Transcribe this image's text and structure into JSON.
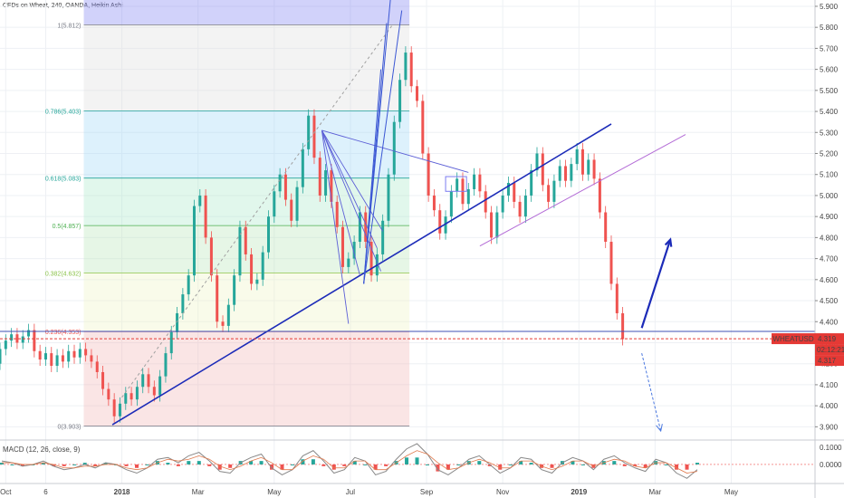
{
  "header": {
    "title": "CFDs on Wheat, 240, OANDA, Heikin Ashi"
  },
  "chart_data": {
    "type": "candlestick",
    "title": "CFDs on Wheat, 240, OANDA, Heikin Ashi",
    "symbol": "WHEATUSD",
    "price_axis": {
      "ylim": [
        3.88,
        5.93
      ],
      "ticks": [
        "3.900",
        "4.000",
        "4.100",
        "4.200",
        "4.300",
        "4.400",
        "4.500",
        "4.600",
        "4.700",
        "4.800",
        "4.900",
        "5.000",
        "5.100",
        "5.200",
        "5.300",
        "5.400",
        "5.500",
        "5.600",
        "5.700",
        "5.800",
        "5.900"
      ]
    },
    "time_axis": {
      "labels": [
        {
          "label": "Oct",
          "t": 0.15
        },
        {
          "label": "6",
          "t": 1.2
        },
        {
          "label": "2018",
          "t": 3.2
        },
        {
          "label": "Mar",
          "t": 5.2
        },
        {
          "label": "May",
          "t": 7.2
        },
        {
          "label": "Jul",
          "t": 9.2
        },
        {
          "label": "Sep",
          "t": 11.2
        },
        {
          "label": "Nov",
          "t": 13.2
        },
        {
          "label": "2019",
          "t": 15.2
        },
        {
          "label": "Mar",
          "t": 17.2
        },
        {
          "label": "May",
          "t": 19.2
        }
      ],
      "range": [
        0,
        21.4
      ]
    },
    "current_price": {
      "label": "WHEATUSD",
      "value": "4.319",
      "price": 4.319
    },
    "countdown": {
      "value": "02:12:21"
    },
    "last_close": {
      "value": "4.317",
      "price": 4.317
    },
    "fibonacci": {
      "t_range": [
        2.2,
        10.75
      ],
      "levels": [
        {
          "label": "1(5.812)",
          "price": 5.812,
          "color": "#787b86",
          "fill": "#7b7df0"
        },
        {
          "label": "0.786(5.403)",
          "price": 5.403,
          "color": "#26a69a",
          "fill": "#dcdcdc"
        },
        {
          "label": "0.618(5.083)",
          "price": 5.083,
          "color": "#26a69a",
          "fill": "#9fd8f5"
        },
        {
          "label": "0.5(4.857)",
          "price": 4.857,
          "color": "#4caf50",
          "fill": "#a8e8c8"
        },
        {
          "label": "0.382(4.632)",
          "price": 4.632,
          "color": "#8bc34a",
          "fill": "#b8e6b8"
        },
        {
          "label": "0.236(4.353)",
          "price": 4.353,
          "color": "#ef5350",
          "fill": "#eef3c4"
        },
        {
          "label": "0(3.903)",
          "price": 3.903,
          "color": "#787b86",
          "fill": "#f0b4b4"
        }
      ]
    },
    "candles": [
      {
        "t": 0.0,
        "o": 4.2,
        "c": 4.27
      },
      {
        "t": 0.15,
        "o": 4.27,
        "c": 4.31
      },
      {
        "t": 0.3,
        "o": 4.31,
        "c": 4.34
      },
      {
        "t": 0.45,
        "o": 4.34,
        "c": 4.3
      },
      {
        "t": 0.6,
        "o": 4.3,
        "c": 4.33
      },
      {
        "t": 0.75,
        "o": 4.33,
        "c": 4.36
      },
      {
        "t": 0.9,
        "o": 4.36,
        "c": 4.26
      },
      {
        "t": 1.05,
        "o": 4.26,
        "c": 4.22
      },
      {
        "t": 1.2,
        "o": 4.22,
        "c": 4.25
      },
      {
        "t": 1.35,
        "o": 4.25,
        "c": 4.19
      },
      {
        "t": 1.5,
        "o": 4.19,
        "c": 4.24
      },
      {
        "t": 1.65,
        "o": 4.24,
        "c": 4.21
      },
      {
        "t": 1.8,
        "o": 4.21,
        "c": 4.26
      },
      {
        "t": 1.95,
        "o": 4.26,
        "c": 4.23
      },
      {
        "t": 2.1,
        "o": 4.23,
        "c": 4.27
      },
      {
        "t": 2.25,
        "o": 4.27,
        "c": 4.24
      },
      {
        "t": 2.4,
        "o": 4.24,
        "c": 4.21
      },
      {
        "t": 2.55,
        "o": 4.21,
        "c": 4.16
      },
      {
        "t": 2.7,
        "o": 4.16,
        "c": 4.08
      },
      {
        "t": 2.85,
        "o": 4.08,
        "c": 4.03
      },
      {
        "t": 3.0,
        "o": 4.03,
        "c": 3.95
      },
      {
        "t": 3.15,
        "o": 3.95,
        "c": 4.01
      },
      {
        "t": 3.3,
        "o": 4.01,
        "c": 4.06
      },
      {
        "t": 3.45,
        "o": 4.06,
        "c": 4.03
      },
      {
        "t": 3.6,
        "o": 4.03,
        "c": 4.09
      },
      {
        "t": 3.75,
        "o": 4.09,
        "c": 4.15
      },
      {
        "t": 3.9,
        "o": 4.15,
        "c": 4.09
      },
      {
        "t": 4.05,
        "o": 4.09,
        "c": 4.05
      },
      {
        "t": 4.2,
        "o": 4.05,
        "c": 4.14
      },
      {
        "t": 4.35,
        "o": 4.14,
        "c": 4.25
      },
      {
        "t": 4.5,
        "o": 4.25,
        "c": 4.35
      },
      {
        "t": 4.65,
        "o": 4.35,
        "c": 4.44
      },
      {
        "t": 4.8,
        "o": 4.44,
        "c": 4.53
      },
      {
        "t": 4.95,
        "o": 4.53,
        "c": 4.62
      },
      {
        "t": 5.1,
        "o": 4.62,
        "c": 4.95
      },
      {
        "t": 5.25,
        "o": 4.95,
        "c": 5.0
      },
      {
        "t": 5.4,
        "o": 5.0,
        "c": 4.8
      },
      {
        "t": 5.55,
        "o": 4.8,
        "c": 4.62
      },
      {
        "t": 5.7,
        "o": 4.62,
        "c": 4.4
      },
      {
        "t": 5.85,
        "o": 4.4,
        "c": 4.38
      },
      {
        "t": 6.0,
        "o": 4.38,
        "c": 4.48
      },
      {
        "t": 6.15,
        "o": 4.48,
        "c": 4.62
      },
      {
        "t": 6.3,
        "o": 4.62,
        "c": 4.85
      },
      {
        "t": 6.45,
        "o": 4.85,
        "c": 4.72
      },
      {
        "t": 6.6,
        "o": 4.72,
        "c": 4.58
      },
      {
        "t": 6.75,
        "o": 4.58,
        "c": 4.6
      },
      {
        "t": 6.9,
        "o": 4.6,
        "c": 4.73
      },
      {
        "t": 7.05,
        "o": 4.73,
        "c": 4.9
      },
      {
        "t": 7.2,
        "o": 4.9,
        "c": 5.02
      },
      {
        "t": 7.35,
        "o": 5.02,
        "c": 5.1
      },
      {
        "t": 7.5,
        "o": 5.1,
        "c": 4.98
      },
      {
        "t": 7.65,
        "o": 4.98,
        "c": 4.88
      },
      {
        "t": 7.8,
        "o": 4.88,
        "c": 5.04
      },
      {
        "t": 7.95,
        "o": 5.04,
        "c": 5.22
      },
      {
        "t": 8.1,
        "o": 5.22,
        "c": 5.38
      },
      {
        "t": 8.25,
        "o": 5.38,
        "c": 5.18
      },
      {
        "t": 8.4,
        "o": 5.18,
        "c": 5.0
      },
      {
        "t": 8.55,
        "o": 5.0,
        "c": 5.12
      },
      {
        "t": 8.7,
        "o": 5.12,
        "c": 4.97
      },
      {
        "t": 8.85,
        "o": 4.97,
        "c": 4.85
      },
      {
        "t": 9.0,
        "o": 4.85,
        "c": 4.66
      },
      {
        "t": 9.15,
        "o": 4.66,
        "c": 4.7
      },
      {
        "t": 9.3,
        "o": 4.7,
        "c": 4.78
      },
      {
        "t": 9.45,
        "o": 4.78,
        "c": 4.92
      },
      {
        "t": 9.6,
        "o": 4.92,
        "c": 4.78
      },
      {
        "t": 9.75,
        "o": 4.78,
        "c": 4.62
      },
      {
        "t": 9.9,
        "o": 4.62,
        "c": 4.72
      },
      {
        "t": 10.05,
        "o": 4.72,
        "c": 4.88
      },
      {
        "t": 10.2,
        "o": 4.88,
        "c": 5.1
      },
      {
        "t": 10.35,
        "o": 5.1,
        "c": 5.35
      },
      {
        "t": 10.5,
        "o": 5.35,
        "c": 5.55
      },
      {
        "t": 10.65,
        "o": 5.55,
        "c": 5.68
      },
      {
        "t": 10.8,
        "o": 5.68,
        "c": 5.52
      },
      {
        "t": 10.95,
        "o": 5.52,
        "c": 5.45
      },
      {
        "t": 11.1,
        "o": 5.45,
        "c": 5.2
      },
      {
        "t": 11.25,
        "o": 5.2,
        "c": 5.0
      },
      {
        "t": 11.4,
        "o": 5.0,
        "c": 4.93
      },
      {
        "t": 11.55,
        "o": 4.93,
        "c": 4.82
      },
      {
        "t": 11.7,
        "o": 4.82,
        "c": 4.9
      },
      {
        "t": 11.85,
        "o": 4.9,
        "c": 5.02
      },
      {
        "t": 12.0,
        "o": 5.02,
        "c": 5.08
      },
      {
        "t": 12.15,
        "o": 5.08,
        "c": 4.96
      },
      {
        "t": 12.3,
        "o": 4.96,
        "c": 5.03
      },
      {
        "t": 12.45,
        "o": 5.03,
        "c": 5.1
      },
      {
        "t": 12.6,
        "o": 5.1,
        "c": 5.02
      },
      {
        "t": 12.75,
        "o": 5.02,
        "c": 4.92
      },
      {
        "t": 12.9,
        "o": 4.92,
        "c": 4.8
      },
      {
        "t": 13.05,
        "o": 4.8,
        "c": 4.92
      },
      {
        "t": 13.2,
        "o": 4.92,
        "c": 5.0
      },
      {
        "t": 13.35,
        "o": 5.0,
        "c": 5.06
      },
      {
        "t": 13.5,
        "o": 5.06,
        "c": 4.97
      },
      {
        "t": 13.65,
        "o": 4.97,
        "c": 4.9
      },
      {
        "t": 13.8,
        "o": 4.9,
        "c": 5.0
      },
      {
        "t": 13.95,
        "o": 5.0,
        "c": 5.12
      },
      {
        "t": 14.1,
        "o": 5.12,
        "c": 5.2
      },
      {
        "t": 14.25,
        "o": 5.2,
        "c": 5.05
      },
      {
        "t": 14.4,
        "o": 5.05,
        "c": 4.97
      },
      {
        "t": 14.55,
        "o": 4.97,
        "c": 5.07
      },
      {
        "t": 14.7,
        "o": 5.07,
        "c": 5.14
      },
      {
        "t": 14.85,
        "o": 5.14,
        "c": 5.07
      },
      {
        "t": 15.0,
        "o": 5.07,
        "c": 5.15
      },
      {
        "t": 15.15,
        "o": 5.15,
        "c": 5.22
      },
      {
        "t": 15.3,
        "o": 5.22,
        "c": 5.1
      },
      {
        "t": 15.45,
        "o": 5.1,
        "c": 5.17
      },
      {
        "t": 15.6,
        "o": 5.17,
        "c": 5.08
      },
      {
        "t": 15.75,
        "o": 5.08,
        "c": 4.92
      },
      {
        "t": 15.9,
        "o": 4.92,
        "c": 4.78
      },
      {
        "t": 16.05,
        "o": 4.78,
        "c": 4.58
      },
      {
        "t": 16.2,
        "o": 4.58,
        "c": 4.44
      },
      {
        "t": 16.35,
        "o": 4.44,
        "c": 4.317
      }
    ],
    "drawings": {
      "uptrend_line": {
        "from": {
          "t": 2.95,
          "p": 3.91
        },
        "to": {
          "t": 16.05,
          "p": 5.34
        },
        "color": "#1c2bb8"
      },
      "dashed_diagonal": {
        "from": {
          "t": 3.2,
          "p": 4.04
        },
        "to": {
          "t": 10.3,
          "p": 5.81
        },
        "color": "#a0a0a0"
      },
      "channel_line": {
        "from": {
          "t": 12.6,
          "p": 4.76
        },
        "to": {
          "t": 18.0,
          "p": 5.29
        },
        "color": "#b36bd6"
      },
      "horizontal_line": {
        "price": 4.354,
        "color": "#3f51b5"
      },
      "price_line": {
        "price": 4.319,
        "color": "#e53935"
      },
      "projection_up": {
        "from": {
          "t": 16.85,
          "p": 4.37
        },
        "to": {
          "t": 17.6,
          "p": 4.79
        },
        "color": "#1c2bb8"
      },
      "projection_down": {
        "from": {
          "t": 16.85,
          "p": 4.25
        },
        "to": {
          "t": 17.35,
          "p": 3.88
        },
        "color": "#4a78e0"
      },
      "pitchfan_origin": {
        "t": 8.45,
        "p": 5.31
      },
      "pitchfan_rays": [
        {
          "t": 9.45,
          "p": 4.62
        },
        {
          "t": 9.15,
          "p": 4.39
        },
        {
          "t": 9.9,
          "p": 4.75
        },
        {
          "t": 10.0,
          "p": 4.64
        },
        {
          "t": 10.05,
          "p": 4.83
        },
        {
          "t": 12.3,
          "p": 5.11
        }
      ],
      "steep_fan_origin": {
        "t": 9.55,
        "p": 4.58
      },
      "steep_fan_rays": [
        {
          "t": 10.25,
          "p": 5.93
        },
        {
          "t": 10.55,
          "p": 5.88
        },
        {
          "t": 10.15,
          "p": 5.82
        },
        {
          "t": 10.0,
          "p": 5.6
        }
      ],
      "small_rectangle": {
        "t1": 11.7,
        "t2": 12.25,
        "p1": 5.09,
        "p2": 5.02,
        "color": "#7b7df0"
      }
    },
    "macd": {
      "label": "MACD (12, 26, close, 9)",
      "ylim": [
        -0.11,
        0.12
      ],
      "ticks": [
        "0.1000",
        "0.0000"
      ],
      "tick_values": [
        0.1,
        0.0
      ],
      "macd_values": [
        0.02,
        0.01,
        -0.01,
        0.0,
        0.02,
        -0.01,
        -0.03,
        -0.02,
        0.0,
        -0.02,
        0.01,
        0.0,
        -0.03,
        -0.05,
        -0.02,
        0.03,
        0.04,
        0.01,
        0.05,
        0.07,
        0.02,
        -0.04,
        -0.05,
        0.01,
        0.04,
        0.06,
        -0.02,
        -0.06,
        -0.03,
        0.05,
        0.08,
        0.02,
        -0.05,
        -0.03,
        0.04,
        0.02,
        -0.06,
        -0.04,
        0.03,
        0.09,
        0.12,
        0.06,
        -0.03,
        -0.06,
        -0.02,
        0.03,
        0.05,
        0.0,
        -0.05,
        -0.02,
        0.04,
        0.03,
        -0.03,
        -0.05,
        0.01,
        0.04,
        0.02,
        -0.03,
        0.03,
        0.05,
        0.01,
        -0.02,
        -0.04,
        0.03,
        0.01,
        -0.05,
        -0.08,
        -0.03
      ],
      "signal_values": [
        0.01,
        0.01,
        0.0,
        0.0,
        0.01,
        0.0,
        -0.02,
        -0.02,
        -0.01,
        -0.01,
        0.0,
        0.0,
        -0.02,
        -0.03,
        -0.02,
        0.01,
        0.03,
        0.02,
        0.03,
        0.05,
        0.03,
        -0.01,
        -0.03,
        -0.01,
        0.02,
        0.04,
        0.01,
        -0.03,
        -0.03,
        0.02,
        0.05,
        0.03,
        -0.02,
        -0.02,
        0.02,
        0.02,
        -0.03,
        -0.03,
        0.01,
        0.05,
        0.08,
        0.06,
        0.01,
        -0.03,
        -0.02,
        0.01,
        0.03,
        0.01,
        -0.02,
        -0.02,
        0.02,
        0.02,
        -0.01,
        -0.03,
        -0.01,
        0.02,
        0.02,
        -0.01,
        0.01,
        0.03,
        0.02,
        -0.01,
        -0.02,
        0.01,
        0.01,
        -0.02,
        -0.05,
        -0.04
      ]
    }
  },
  "colors": {
    "up": "#26a69a",
    "down": "#ef5350",
    "grid": "#eef0f4",
    "axis_text": "#444444",
    "price_label_bg": "#e53935",
    "countdown_bg": "#e53935"
  }
}
